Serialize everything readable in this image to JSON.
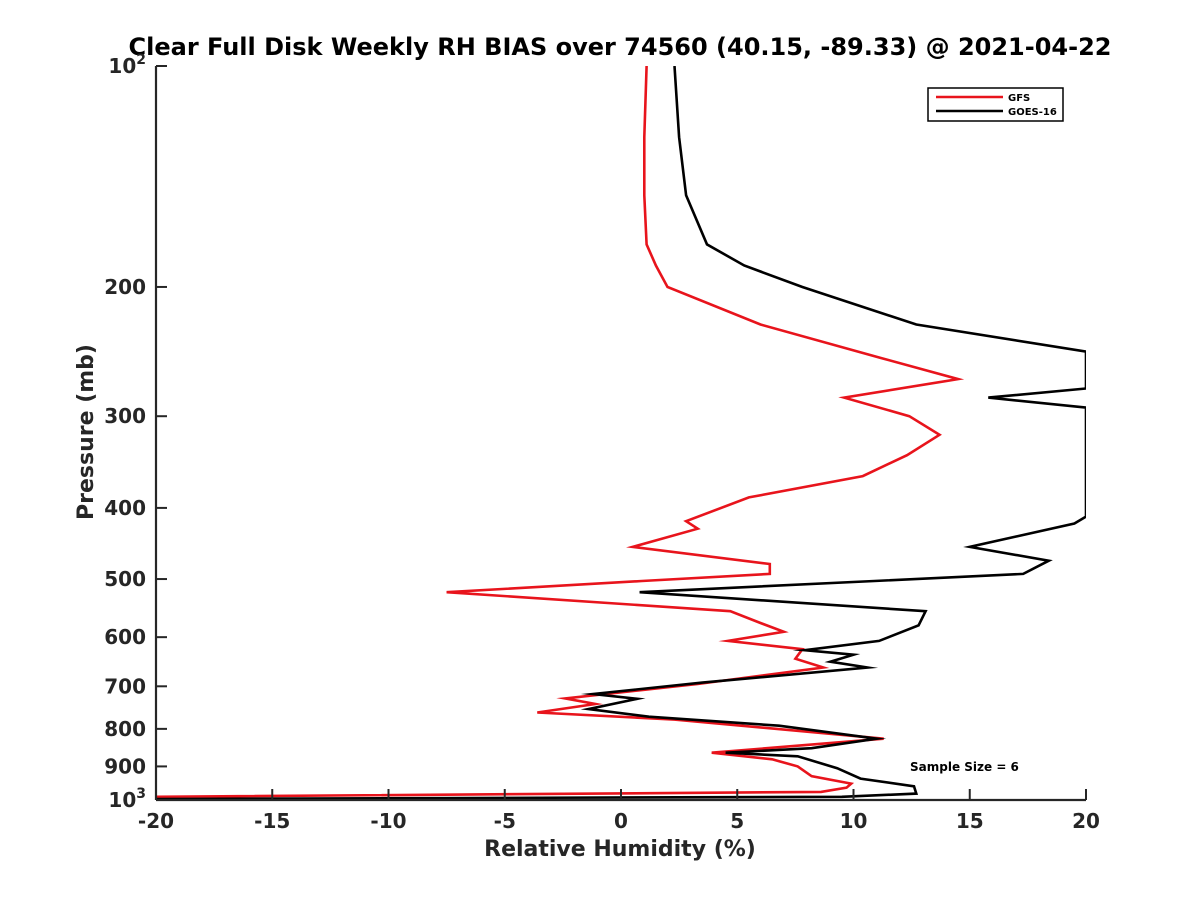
{
  "chart_data": {
    "type": "line",
    "title": "Clear Full Disk Weekly RH BIAS over 74560 (40.15, -89.33) @ 2021-04-22",
    "xlabel": "Relative Humidity (%)",
    "ylabel": "Pressure (mb)",
    "xlim": [
      -20,
      20
    ],
    "ylim": [
      100,
      1000
    ],
    "yscale": "log",
    "y_reversed": true,
    "x_ticks": [
      -20,
      -15,
      -10,
      -5,
      0,
      5,
      10,
      15,
      20
    ],
    "x_tick_labels": [
      "-20",
      "-15",
      "-10",
      "-5",
      "0",
      "5",
      "10",
      "15",
      "20"
    ],
    "y_ticks": [
      100,
      200,
      300,
      400,
      500,
      600,
      700,
      800,
      900,
      1000
    ],
    "y_tick_labels": [
      {
        "base": "10",
        "exp": "2"
      },
      {
        "base": "200"
      },
      {
        "base": "300"
      },
      {
        "base": "400"
      },
      {
        "base": "500"
      },
      {
        "base": "600"
      },
      {
        "base": "700"
      },
      {
        "base": "800"
      },
      {
        "base": "900"
      },
      {
        "base": "10",
        "exp": "3"
      }
    ],
    "grid": false,
    "legend_position": "top-right",
    "annotation": "Sample Size = 6",
    "series": [
      {
        "name": "GFS",
        "color": "#e8141c",
        "points": [
          [
            1.1,
            100
          ],
          [
            1.0,
            125
          ],
          [
            1.0,
            150
          ],
          [
            1.1,
            175
          ],
          [
            1.5,
            187
          ],
          [
            2.0,
            200
          ],
          [
            6.0,
            225
          ],
          [
            11.2,
            250
          ],
          [
            14.5,
            267
          ],
          [
            9.6,
            283
          ],
          [
            12.4,
            300
          ],
          [
            13.7,
            318
          ],
          [
            12.3,
            339
          ],
          [
            10.4,
            362
          ],
          [
            5.5,
            387
          ],
          [
            2.8,
            417
          ],
          [
            3.3,
            427
          ],
          [
            0.5,
            452
          ],
          [
            6.4,
            477
          ],
          [
            6.4,
            492
          ],
          [
            0.9,
            503
          ],
          [
            -7.5,
            521
          ],
          [
            4.7,
            553
          ],
          [
            6.0,
            574
          ],
          [
            7.0,
            590
          ],
          [
            4.6,
            607
          ],
          [
            7.8,
            623
          ],
          [
            7.5,
            642
          ],
          [
            8.7,
            660
          ],
          [
            3.3,
            695
          ],
          [
            -2.4,
            727
          ],
          [
            -1.1,
            740
          ],
          [
            -3.6,
            760
          ],
          [
            2.3,
            777
          ],
          [
            11.3,
            825
          ],
          [
            3.9,
            862
          ],
          [
            6.5,
            880
          ],
          [
            7.6,
            900
          ],
          [
            8.2,
            928
          ],
          [
            9.9,
            950
          ],
          [
            9.7,
            962
          ],
          [
            8.6,
            975
          ],
          [
            -20,
            990
          ]
        ]
      },
      {
        "name": "GOES-16",
        "color": "#000000",
        "points": [
          [
            2.3,
            100
          ],
          [
            2.5,
            125
          ],
          [
            2.8,
            150
          ],
          [
            3.7,
            175
          ],
          [
            5.3,
            187
          ],
          [
            7.8,
            200
          ],
          [
            12.7,
            225
          ],
          [
            20.0,
            245
          ],
          [
            20.0,
            275
          ],
          [
            15.8,
            283
          ],
          [
            20.0,
            292
          ],
          [
            20.0,
            360
          ],
          [
            20.0,
            411
          ],
          [
            19.5,
            420
          ],
          [
            15.0,
            452
          ],
          [
            18.4,
            472
          ],
          [
            17.3,
            492
          ],
          [
            10.9,
            503
          ],
          [
            0.8,
            521
          ],
          [
            13.1,
            553
          ],
          [
            12.8,
            578
          ],
          [
            11.1,
            607
          ],
          [
            7.9,
            625
          ],
          [
            10.0,
            634
          ],
          [
            9.0,
            648
          ],
          [
            10.6,
            660
          ],
          [
            3.5,
            692
          ],
          [
            -1.2,
            717
          ],
          [
            0.7,
            728
          ],
          [
            -1.4,
            752
          ],
          [
            1.2,
            770
          ],
          [
            6.8,
            792
          ],
          [
            11.0,
            825
          ],
          [
            8.2,
            850
          ],
          [
            4.5,
            862
          ],
          [
            7.6,
            872
          ],
          [
            9.3,
            905
          ],
          [
            10.3,
            935
          ],
          [
            12.6,
            958
          ],
          [
            12.7,
            980
          ],
          [
            9.5,
            990
          ],
          [
            -20,
            997
          ]
        ]
      }
    ]
  }
}
